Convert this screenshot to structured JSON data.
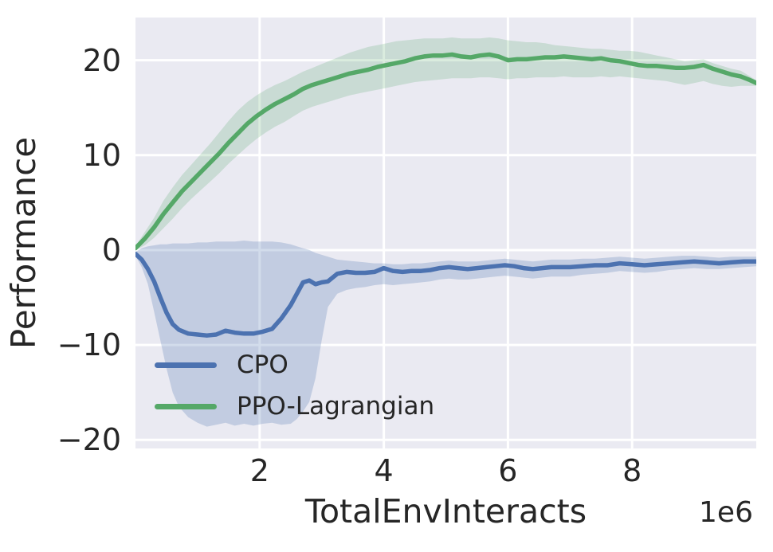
{
  "figure": {
    "background": "#ffffff",
    "plot_background": "#eaeaf2",
    "grid_color": "#ffffff",
    "text_color": "#262626"
  },
  "chart_data": {
    "type": "line",
    "title": "",
    "xlabel": "TotalEnvInteracts",
    "ylabel": "Performance",
    "x_offset_label": "1e6",
    "x_unit_multiplier": 1000000,
    "xlim": [
      0,
      10
    ],
    "ylim": [
      -20.9,
      24.5
    ],
    "grid": true,
    "xticks": [
      {
        "value": 2,
        "label": "2"
      },
      {
        "value": 4,
        "label": "4"
      },
      {
        "value": 6,
        "label": "6"
      },
      {
        "value": 8,
        "label": "8"
      }
    ],
    "yticks": [
      {
        "value": 20,
        "label": "20"
      },
      {
        "value": 10,
        "label": "10"
      },
      {
        "value": 0,
        "label": "0"
      },
      {
        "value": -10,
        "label": "−10"
      },
      {
        "value": -20,
        "label": "−20"
      }
    ],
    "legend": {
      "position": "lower-left",
      "entries": [
        {
          "label": "CPO",
          "color": "#4c72b0"
        },
        {
          "label": "PPO-Lagrangian",
          "color": "#55a868"
        }
      ]
    },
    "series": [
      {
        "name": "CPO",
        "color": "#4c72b0",
        "band_color": "rgba(76,114,176,0.25)",
        "x": [
          0,
          0.1,
          0.2,
          0.3,
          0.4,
          0.5,
          0.6,
          0.7,
          0.85,
          1.0,
          1.15,
          1.3,
          1.45,
          1.6,
          1.75,
          1.9,
          2.05,
          2.2,
          2.35,
          2.5,
          2.6,
          2.7,
          2.8,
          2.9,
          3.0,
          3.1,
          3.25,
          3.4,
          3.55,
          3.7,
          3.85,
          4.0,
          4.15,
          4.3,
          4.45,
          4.6,
          4.75,
          4.9,
          5.05,
          5.2,
          5.35,
          5.5,
          5.65,
          5.8,
          5.95,
          6.1,
          6.25,
          6.4,
          6.55,
          6.7,
          6.85,
          7.0,
          7.2,
          7.4,
          7.6,
          7.8,
          8.0,
          8.2,
          8.4,
          8.6,
          8.8,
          9.0,
          9.2,
          9.4,
          9.6,
          9.8,
          10.0
        ],
        "y": [
          -0.4,
          -1.0,
          -2.0,
          -3.3,
          -5.0,
          -6.6,
          -7.8,
          -8.4,
          -8.8,
          -8.9,
          -9.0,
          -8.9,
          -8.5,
          -8.7,
          -8.8,
          -8.8,
          -8.6,
          -8.3,
          -7.2,
          -5.8,
          -4.6,
          -3.4,
          -3.2,
          -3.6,
          -3.4,
          -3.3,
          -2.5,
          -2.3,
          -2.4,
          -2.4,
          -2.3,
          -1.9,
          -2.2,
          -2.3,
          -2.2,
          -2.2,
          -2.1,
          -1.9,
          -1.8,
          -1.9,
          -2.0,
          -1.9,
          -1.8,
          -1.7,
          -1.6,
          -1.7,
          -1.9,
          -2.0,
          -1.9,
          -1.8,
          -1.8,
          -1.8,
          -1.7,
          -1.6,
          -1.6,
          -1.4,
          -1.5,
          -1.6,
          -1.5,
          -1.4,
          -1.3,
          -1.2,
          -1.3,
          -1.4,
          -1.3,
          -1.2,
          -1.2
        ],
        "band_upper": [
          -0.2,
          0.2,
          0.4,
          0.5,
          0.6,
          0.6,
          0.7,
          0.7,
          0.7,
          0.8,
          0.8,
          0.9,
          0.9,
          0.9,
          1.0,
          0.9,
          0.9,
          0.9,
          0.8,
          0.6,
          0.4,
          0.2,
          0.0,
          -0.3,
          -0.5,
          -0.7,
          -1.0,
          -1.1,
          -1.2,
          -1.3,
          -1.4,
          -1.4,
          -1.5,
          -1.5,
          -1.4,
          -1.4,
          -1.3,
          -1.2,
          -1.1,
          -1.2,
          -1.2,
          -1.2,
          -1.1,
          -1.0,
          -0.9,
          -1.0,
          -1.1,
          -1.2,
          -1.1,
          -1.0,
          -1.0,
          -1.0,
          -0.9,
          -0.9,
          -0.8,
          -0.7,
          -0.8,
          -0.9,
          -0.8,
          -0.7,
          -0.6,
          -0.6,
          -0.7,
          -0.8,
          -0.7,
          -0.7,
          -0.7
        ],
        "band_lower": [
          -0.6,
          -1.8,
          -3.6,
          -6.5,
          -9.5,
          -12.5,
          -15.0,
          -16.5,
          -17.6,
          -18.2,
          -18.6,
          -18.4,
          -18.2,
          -18.5,
          -18.3,
          -18.5,
          -18.3,
          -18.2,
          -18.4,
          -18.3,
          -17.8,
          -17.0,
          -16.0,
          -13.5,
          -9.5,
          -6.0,
          -4.6,
          -4.2,
          -4.0,
          -3.9,
          -3.7,
          -3.6,
          -3.7,
          -3.6,
          -3.5,
          -3.4,
          -3.3,
          -3.1,
          -3.0,
          -3.1,
          -3.1,
          -3.0,
          -2.9,
          -2.8,
          -2.7,
          -2.8,
          -2.9,
          -3.0,
          -2.9,
          -2.8,
          -2.8,
          -2.8,
          -2.6,
          -2.5,
          -2.4,
          -2.2,
          -2.3,
          -2.4,
          -2.3,
          -2.1,
          -2.0,
          -1.9,
          -2.0,
          -2.0,
          -1.9,
          -1.8,
          -1.7
        ]
      },
      {
        "name": "PPO-Lagrangian",
        "color": "#55a868",
        "band_color": "rgba(85,168,104,0.22)",
        "x": [
          0,
          0.15,
          0.3,
          0.45,
          0.6,
          0.75,
          0.9,
          1.05,
          1.2,
          1.35,
          1.5,
          1.65,
          1.8,
          1.95,
          2.1,
          2.25,
          2.4,
          2.55,
          2.7,
          2.85,
          3.0,
          3.15,
          3.3,
          3.45,
          3.6,
          3.75,
          3.9,
          4.05,
          4.2,
          4.35,
          4.5,
          4.65,
          4.8,
          4.95,
          5.1,
          5.25,
          5.4,
          5.55,
          5.7,
          5.85,
          6.0,
          6.15,
          6.3,
          6.45,
          6.6,
          6.75,
          6.9,
          7.05,
          7.2,
          7.35,
          7.5,
          7.65,
          7.8,
          7.95,
          8.1,
          8.25,
          8.4,
          8.55,
          8.7,
          8.85,
          9.0,
          9.15,
          9.3,
          9.45,
          9.6,
          9.75,
          9.9,
          10.0
        ],
        "y": [
          0.2,
          1.2,
          2.4,
          3.8,
          5.0,
          6.2,
          7.2,
          8.2,
          9.2,
          10.2,
          11.3,
          12.3,
          13.3,
          14.1,
          14.8,
          15.4,
          15.9,
          16.4,
          17.0,
          17.4,
          17.7,
          18.0,
          18.3,
          18.6,
          18.8,
          19.0,
          19.3,
          19.5,
          19.7,
          19.9,
          20.2,
          20.4,
          20.5,
          20.5,
          20.6,
          20.4,
          20.3,
          20.5,
          20.6,
          20.4,
          20.0,
          20.1,
          20.1,
          20.2,
          20.3,
          20.3,
          20.4,
          20.3,
          20.2,
          20.1,
          20.2,
          20.0,
          19.9,
          19.7,
          19.5,
          19.4,
          19.4,
          19.3,
          19.2,
          19.2,
          19.3,
          19.5,
          19.1,
          18.8,
          18.5,
          18.3,
          17.9,
          17.6
        ],
        "band_upper": [
          0.4,
          1.9,
          3.4,
          5.2,
          6.6,
          7.9,
          9.0,
          10.1,
          11.2,
          12.4,
          13.6,
          14.7,
          15.6,
          16.3,
          16.9,
          17.4,
          17.8,
          18.3,
          18.8,
          19.2,
          19.6,
          20.0,
          20.4,
          20.8,
          21.1,
          21.4,
          21.6,
          21.8,
          22.0,
          22.1,
          22.2,
          22.3,
          22.3,
          22.3,
          22.4,
          22.3,
          22.3,
          22.3,
          22.4,
          22.3,
          22.1,
          22.0,
          21.9,
          21.9,
          21.8,
          21.6,
          21.5,
          21.4,
          21.3,
          21.2,
          21.2,
          21.1,
          21.0,
          21.0,
          20.9,
          20.7,
          20.5,
          20.3,
          20.1,
          19.9,
          20.0,
          20.1,
          19.7,
          19.4,
          19.1,
          18.9,
          18.3,
          17.9
        ],
        "band_lower": [
          0.0,
          0.5,
          1.3,
          2.3,
          3.3,
          4.4,
          5.4,
          6.3,
          7.2,
          8.1,
          9.1,
          10.0,
          10.9,
          11.7,
          12.4,
          13.0,
          13.5,
          14.1,
          14.7,
          15.1,
          15.4,
          15.7,
          16.0,
          16.3,
          16.5,
          16.7,
          16.9,
          17.1,
          17.3,
          17.5,
          17.7,
          17.8,
          17.9,
          18.0,
          18.1,
          18.1,
          18.1,
          18.2,
          18.2,
          18.1,
          18.0,
          18.1,
          18.1,
          18.2,
          18.2,
          18.2,
          18.3,
          18.2,
          18.2,
          18.2,
          18.3,
          18.2,
          18.3,
          18.2,
          18.1,
          18.0,
          17.9,
          17.8,
          17.6,
          17.4,
          17.6,
          17.8,
          17.5,
          17.3,
          17.2,
          17.3,
          17.3,
          17.3
        ]
      }
    ]
  }
}
